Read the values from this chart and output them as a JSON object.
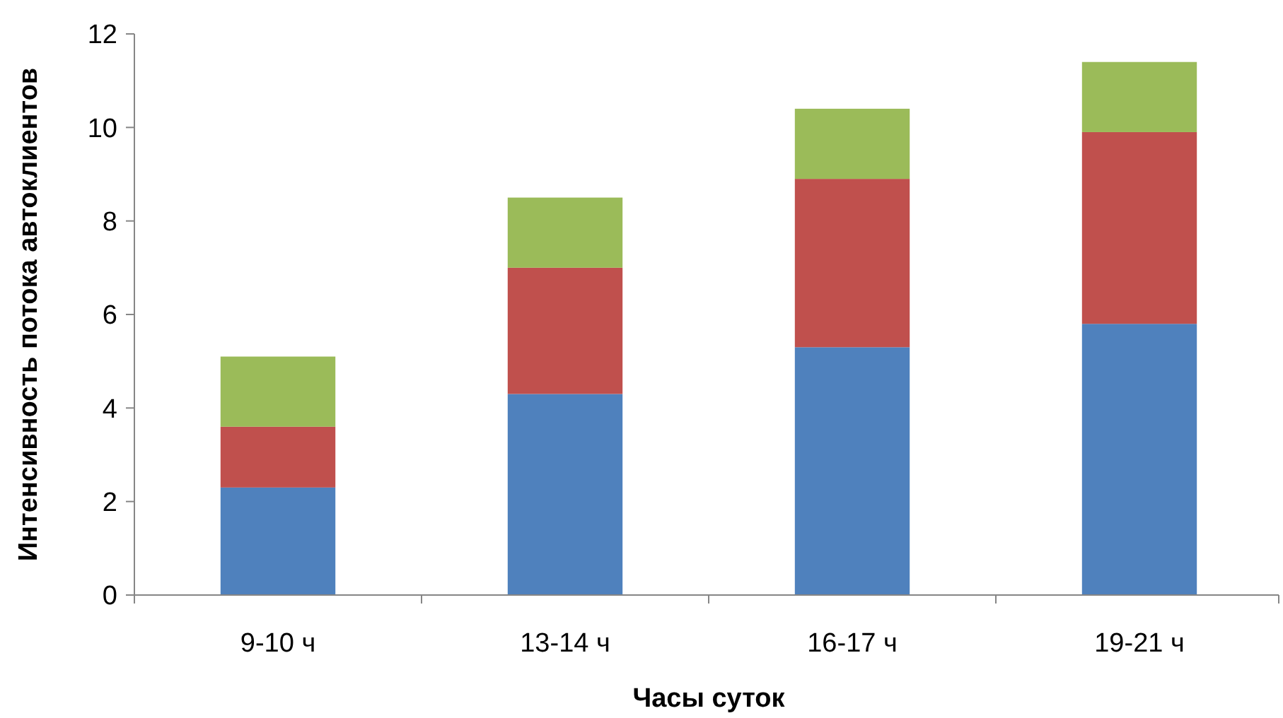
{
  "chart_data": {
    "type": "bar",
    "stacked": true,
    "xlabel": "Часы суток",
    "ylabel": "Интенсивность потока автоклиентов",
    "categories": [
      "9-10 ч",
      "13-14 ч",
      "16-17 ч",
      "19-21 ч"
    ],
    "series": [
      {
        "color": "#4f81bd",
        "values": [
          2.3,
          4.3,
          5.3,
          5.8
        ]
      },
      {
        "color": "#c0504d",
        "values": [
          1.3,
          2.7,
          3.6,
          4.1
        ]
      },
      {
        "color": "#9bbb59",
        "values": [
          1.5,
          1.5,
          1.5,
          1.5
        ]
      }
    ],
    "ylim": [
      0,
      12
    ],
    "yticks": [
      0,
      2,
      4,
      6,
      8,
      10,
      12
    ],
    "grid": false
  }
}
